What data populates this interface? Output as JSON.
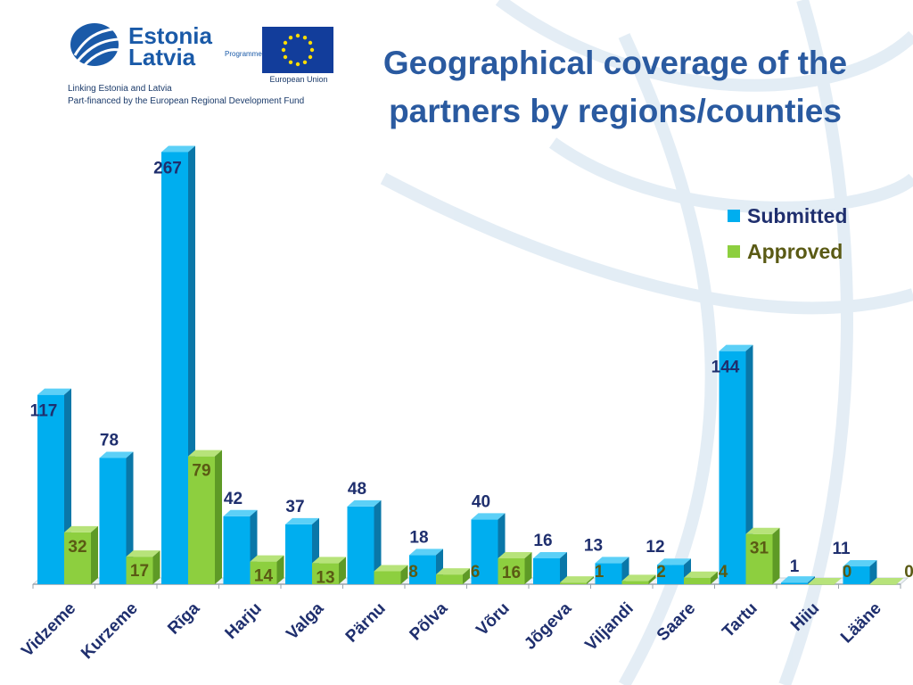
{
  "header": {
    "brand_line1": "Estonia",
    "brand_line2": "Latvia",
    "brand_programme": "Programme",
    "eu_label": "European Union",
    "tagline1": "Linking Estonia and Latvia",
    "tagline2": "Part-financed by the European Regional Development Fund"
  },
  "colors": {
    "submitted_front": "#00aeef",
    "submitted_side": "#0a77a8",
    "submitted_top": "#5cd0f7",
    "approved_front": "#8dcf3f",
    "approved_side": "#5e9a26",
    "approved_top": "#b7e37a",
    "submitted_label": "#1f2f6e",
    "approved_label": "#5a5a14",
    "title": "#2a5aa0"
  },
  "chart_data": {
    "type": "bar",
    "title": "Geographical coverage of the partners by regions/counties",
    "categories": [
      "Vidzeme",
      "Kurzeme",
      "Rīga",
      "Harju",
      "Valga",
      "Pärnu",
      "Põlva",
      "Võru",
      "Jõgeva",
      "Viljandi",
      "Saare",
      "Tartu",
      "Hiiu",
      "Lääne"
    ],
    "series": [
      {
        "name": "Submitted",
        "values": [
          117,
          78,
          267,
          42,
          37,
          48,
          18,
          40,
          16,
          13,
          12,
          144,
          1,
          11
        ]
      },
      {
        "name": "Approved",
        "values": [
          32,
          17,
          79,
          14,
          13,
          8,
          6,
          16,
          1,
          2,
          4,
          31,
          0,
          0
        ]
      }
    ],
    "ylim": [
      0,
      270
    ],
    "legend": "right",
    "grid": false
  }
}
